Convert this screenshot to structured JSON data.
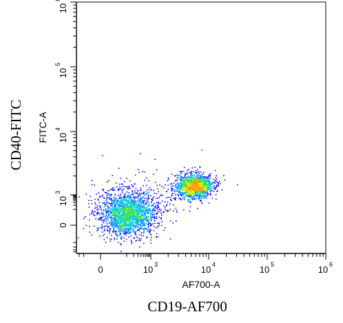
{
  "chart_data": {
    "type": "scatter",
    "subtype": "flow-cytometry-density-dot-plot",
    "xlabel": "AF700-A",
    "ylabel": "FITC-A",
    "x_marker_label": "CD19-AF700",
    "y_marker_label": "CD40-FITC",
    "x_scale": "biexponential",
    "y_scale": "biexponential",
    "xlim": [
      -300,
      1000000
    ],
    "ylim": [
      -500,
      1000000
    ],
    "x_ticks": [
      {
        "value": 0,
        "base": "0",
        "exp": ""
      },
      {
        "value": 1000,
        "base": "10",
        "exp": "3"
      },
      {
        "value": 10000,
        "base": "10",
        "exp": "4"
      },
      {
        "value": 100000,
        "base": "10",
        "exp": "5"
      },
      {
        "value": 1000000,
        "base": "10",
        "exp": "6"
      }
    ],
    "y_ticks": [
      {
        "value": 0,
        "base": "0",
        "exp": ""
      },
      {
        "value": 1000,
        "base": "10",
        "exp": "3"
      },
      {
        "value": 10000,
        "base": "10",
        "exp": "4"
      },
      {
        "value": 100000,
        "base": "10",
        "exp": "5"
      },
      {
        "value": 1000000,
        "base": "10",
        "exp": "6"
      }
    ],
    "populations": [
      {
        "center_x": 100,
        "center_y": 50,
        "spread_x": 0.7,
        "spread_y": 0.55,
        "relative_size": 0.55
      },
      {
        "center_x": 5500,
        "center_y": 1400,
        "spread_x": 0.45,
        "spread_y": 0.3,
        "relative_size": 0.4
      },
      {
        "center_x": 800,
        "center_y": 500,
        "spread_x": 1.0,
        "spread_y": 0.8,
        "relative_size": 0.05
      }
    ],
    "density_colors": [
      "#0000ff",
      "#0090ff",
      "#00d0d0",
      "#40e040",
      "#d0f000",
      "#ffa000"
    ],
    "grid": false
  }
}
